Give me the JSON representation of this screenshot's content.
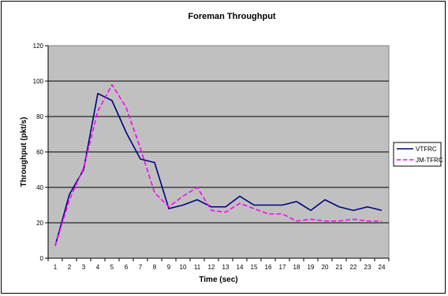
{
  "chart_data": {
    "type": "line",
    "title": "Foreman Throughput",
    "xlabel": "Time (sec)",
    "ylabel": "Throughput (pkt/s)",
    "ylim": [
      0,
      120
    ],
    "yticks": [
      0,
      20,
      40,
      60,
      80,
      100,
      120
    ],
    "x": [
      1,
      2,
      3,
      4,
      5,
      6,
      7,
      8,
      9,
      10,
      11,
      12,
      13,
      14,
      15,
      16,
      17,
      18,
      19,
      20,
      21,
      22,
      23,
      24
    ],
    "grid": "horizontal",
    "legend_position": "right",
    "series": [
      {
        "name": "VTFRC",
        "color": "#000080",
        "style": "solid",
        "values": [
          7,
          36,
          50,
          93,
          89,
          71,
          56,
          54,
          28,
          30,
          33,
          29,
          29,
          35,
          30,
          30,
          30,
          32,
          27,
          33,
          29,
          27,
          29,
          27
        ]
      },
      {
        "name": "JM-TFRC",
        "color": "#FF00FF",
        "style": "dashed",
        "values": [
          7,
          33,
          51,
          83,
          98,
          85,
          62,
          37,
          29,
          35,
          40,
          27,
          26,
          31,
          28,
          25,
          25,
          21,
          22,
          21,
          21,
          22,
          21,
          21
        ]
      }
    ]
  }
}
